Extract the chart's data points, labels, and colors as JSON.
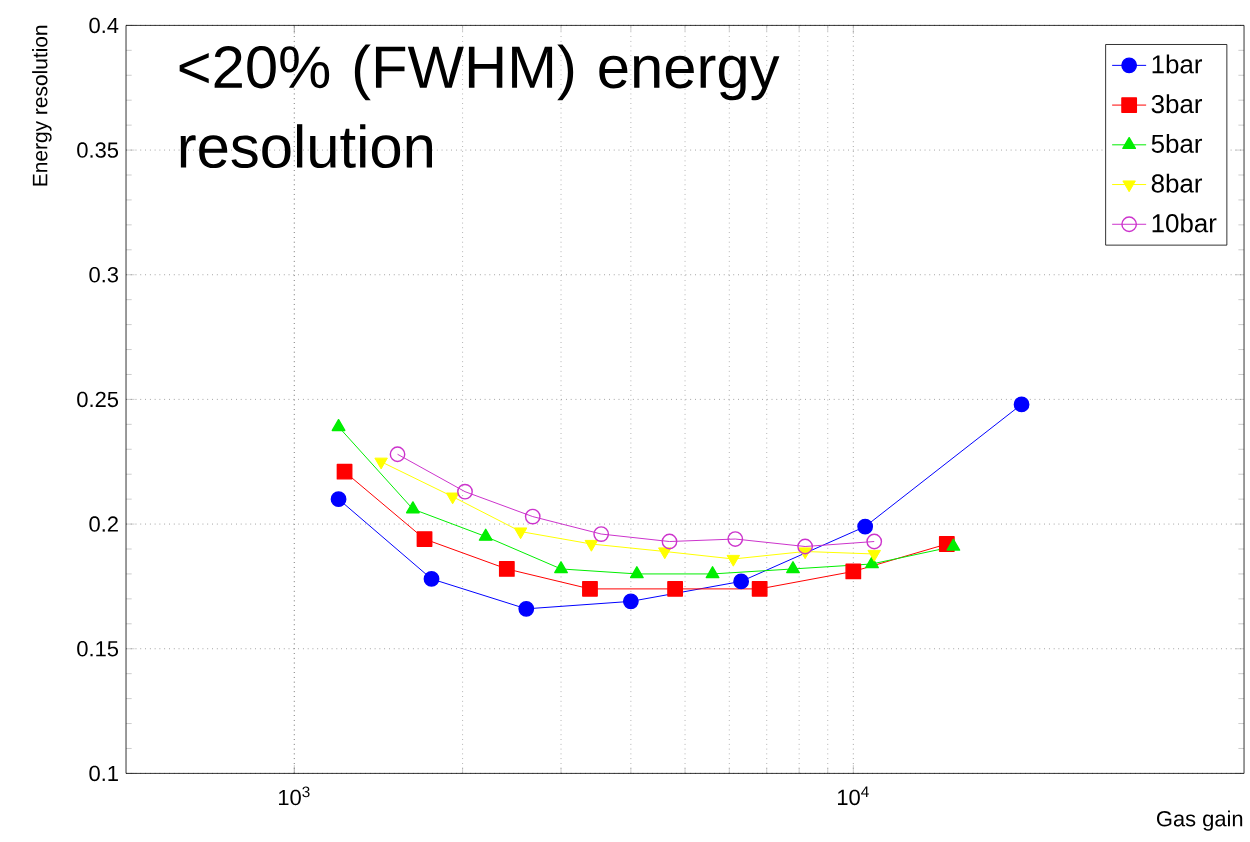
{
  "chart_data": {
    "type": "line",
    "xlabel": "Gas gain",
    "ylabel": "Energy resolution",
    "annotations": [
      "<20% (FWHM) energy resolution"
    ],
    "log": "x",
    "xlim": [
      500,
      50000
    ],
    "ylim": [
      0.1,
      0.4
    ],
    "xticks": [
      {
        "value": 1000,
        "label": "10$^{3}$"
      },
      {
        "value": 10000,
        "label": "10$^{4}$"
      }
    ],
    "yticks": [
      0.1,
      0.15,
      0.2,
      0.25,
      0.3,
      0.35,
      0.4
    ],
    "grid": true,
    "legend": "top right",
    "line_style": "solid",
    "series": [
      {
        "name": "1bar",
        "color": "#0000ff",
        "marker": "circle",
        "x": [
          1200,
          1760,
          2600,
          4000,
          6300,
          10500,
          20000
        ],
        "values": [
          0.21,
          0.178,
          0.166,
          0.169,
          0.177,
          0.199,
          0.248
        ]
      },
      {
        "name": "3bar",
        "color": "#ff0000",
        "marker": "square",
        "x": [
          1230,
          1710,
          2400,
          3380,
          4800,
          6800,
          10000,
          14700
        ],
        "values": [
          0.221,
          0.194,
          0.182,
          0.174,
          0.174,
          0.174,
          0.181,
          0.192
        ]
      },
      {
        "name": "5bar",
        "color": "#00ee00",
        "marker": "triangle",
        "x": [
          1200,
          1630,
          2200,
          3000,
          4100,
          5600,
          7800,
          10800,
          15100
        ],
        "values": [
          0.239,
          0.206,
          0.195,
          0.182,
          0.18,
          0.18,
          0.182,
          0.184,
          0.191
        ]
      },
      {
        "name": "8bar",
        "color": "#ffff00",
        "marker": "triangle-down",
        "x": [
          1430,
          1920,
          2540,
          3400,
          4600,
          6100,
          8200,
          10900
        ],
        "values": [
          0.225,
          0.211,
          0.197,
          0.192,
          0.189,
          0.186,
          0.189,
          0.188
        ]
      },
      {
        "name": "10bar",
        "color": "#cc33cc",
        "marker": "circle-open",
        "x": [
          1530,
          2020,
          2670,
          3540,
          4690,
          6150,
          8200,
          10900
        ],
        "values": [
          0.228,
          0.213,
          0.203,
          0.196,
          0.193,
          0.194,
          0.191,
          0.193
        ]
      }
    ]
  }
}
